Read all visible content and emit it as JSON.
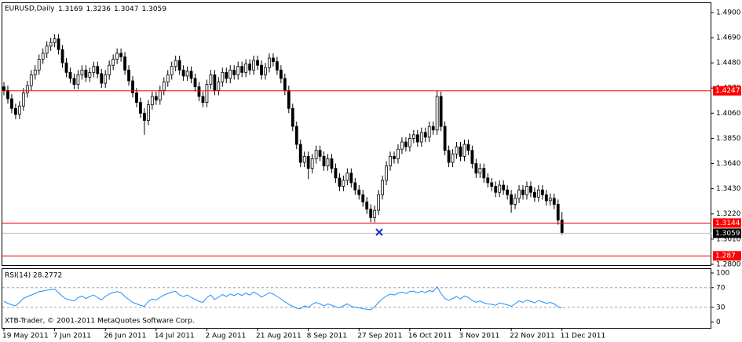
{
  "chart_data": [
    {
      "type": "candlestick",
      "title": "EURUSD,Daily",
      "categories": [
        "19 May 2011",
        null,
        null,
        null,
        null,
        null,
        null,
        null,
        null,
        null,
        null,
        null,
        null,
        "7 Jun 2011",
        null,
        null,
        null,
        null,
        null,
        null,
        null,
        null,
        null,
        null,
        null,
        null,
        "26 Jun 2011",
        null,
        null,
        null,
        null,
        null,
        null,
        null,
        null,
        null,
        null,
        null,
        null,
        "14 Jul 2011",
        null,
        null,
        null,
        null,
        null,
        null,
        null,
        null,
        null,
        null,
        null,
        null,
        "2 Aug 2011",
        null,
        null,
        null,
        null,
        null,
        null,
        null,
        null,
        null,
        null,
        null,
        null,
        "21 Aug 2011",
        null,
        null,
        null,
        null,
        null,
        null,
        null,
        null,
        null,
        null,
        null,
        null,
        "8 Sep 2011",
        null,
        null,
        null,
        null,
        null,
        null,
        null,
        null,
        null,
        null,
        null,
        null,
        "27 Sep 2011",
        null,
        null,
        null,
        null,
        null,
        null,
        null,
        null,
        null,
        null,
        null,
        null,
        "16 Oct 2011",
        null,
        null,
        null,
        null,
        null,
        null,
        null,
        null,
        null,
        null,
        null,
        null,
        "3 Nov 2011",
        null,
        null,
        null,
        null,
        null,
        null,
        null,
        null,
        null,
        null,
        null,
        null,
        "22 Nov 2011",
        null,
        null,
        null,
        null,
        null,
        null,
        null,
        null,
        null,
        null,
        null,
        null,
        "11 Dec 2011"
      ],
      "up_color": "#ffffff",
      "down_color": "#000000",
      "ohlc": [
        [
          1.428,
          1.432,
          1.421,
          1.425
        ],
        [
          1.425,
          1.429,
          1.414,
          1.418
        ],
        [
          1.418,
          1.422,
          1.406,
          1.41
        ],
        [
          1.41,
          1.414,
          1.401,
          1.405
        ],
        [
          1.405,
          1.416,
          1.401,
          1.412
        ],
        [
          1.412,
          1.427,
          1.408,
          1.423
        ],
        [
          1.423,
          1.433,
          1.419,
          1.429
        ],
        [
          1.429,
          1.442,
          1.425,
          1.438
        ],
        [
          1.438,
          1.446,
          1.434,
          1.442
        ],
        [
          1.442,
          1.455,
          1.438,
          1.451
        ],
        [
          1.451,
          1.46,
          1.447,
          1.456
        ],
        [
          1.456,
          1.466,
          1.452,
          1.462
        ],
        [
          1.462,
          1.469,
          1.458,
          1.465
        ],
        [
          1.465,
          1.472,
          1.461,
          1.468
        ],
        [
          1.468,
          1.472,
          1.455,
          1.459
        ],
        [
          1.459,
          1.463,
          1.444,
          1.448
        ],
        [
          1.448,
          1.452,
          1.436,
          1.44
        ],
        [
          1.44,
          1.444,
          1.431,
          1.435
        ],
        [
          1.435,
          1.439,
          1.426,
          1.43
        ],
        [
          1.43,
          1.442,
          1.426,
          1.438
        ],
        [
          1.438,
          1.446,
          1.434,
          1.442
        ],
        [
          1.442,
          1.446,
          1.432,
          1.436
        ],
        [
          1.436,
          1.444,
          1.432,
          1.44
        ],
        [
          1.44,
          1.449,
          1.436,
          1.445
        ],
        [
          1.445,
          1.449,
          1.435,
          1.439
        ],
        [
          1.439,
          1.443,
          1.427,
          1.431
        ],
        [
          1.431,
          1.442,
          1.427,
          1.438
        ],
        [
          1.438,
          1.45,
          1.434,
          1.446
        ],
        [
          1.446,
          1.455,
          1.442,
          1.451
        ],
        [
          1.451,
          1.46,
          1.447,
          1.456
        ],
        [
          1.456,
          1.46,
          1.449,
          1.453
        ],
        [
          1.453,
          1.457,
          1.438,
          1.442
        ],
        [
          1.442,
          1.446,
          1.429,
          1.433
        ],
        [
          1.433,
          1.437,
          1.419,
          1.423
        ],
        [
          1.423,
          1.427,
          1.411,
          1.415
        ],
        [
          1.415,
          1.419,
          1.402,
          1.406
        ],
        [
          1.406,
          1.41,
          1.388,
          1.4
        ],
        [
          1.4,
          1.417,
          1.396,
          1.413
        ],
        [
          1.413,
          1.424,
          1.409,
          1.42
        ],
        [
          1.42,
          1.424,
          1.413,
          1.417
        ],
        [
          1.417,
          1.429,
          1.413,
          1.425
        ],
        [
          1.425,
          1.436,
          1.421,
          1.432
        ],
        [
          1.432,
          1.442,
          1.428,
          1.438
        ],
        [
          1.438,
          1.449,
          1.434,
          1.445
        ],
        [
          1.445,
          1.454,
          1.441,
          1.45
        ],
        [
          1.45,
          1.454,
          1.438,
          1.442
        ],
        [
          1.442,
          1.446,
          1.433,
          1.437
        ],
        [
          1.437,
          1.445,
          1.433,
          1.441
        ],
        [
          1.441,
          1.445,
          1.431,
          1.435
        ],
        [
          1.435,
          1.439,
          1.424,
          1.428
        ],
        [
          1.428,
          1.432,
          1.416,
          1.42
        ],
        [
          1.42,
          1.424,
          1.411,
          1.415
        ],
        [
          1.415,
          1.434,
          1.411,
          1.43
        ],
        [
          1.43,
          1.442,
          1.426,
          1.438
        ],
        [
          1.438,
          1.442,
          1.421,
          1.425
        ],
        [
          1.425,
          1.436,
          1.421,
          1.432
        ],
        [
          1.432,
          1.444,
          1.428,
          1.44
        ],
        [
          1.44,
          1.444,
          1.431,
          1.435
        ],
        [
          1.435,
          1.446,
          1.431,
          1.442
        ],
        [
          1.442,
          1.446,
          1.434,
          1.438
        ],
        [
          1.438,
          1.449,
          1.434,
          1.445
        ],
        [
          1.445,
          1.449,
          1.436,
          1.44
        ],
        [
          1.44,
          1.451,
          1.436,
          1.447
        ],
        [
          1.447,
          1.451,
          1.438,
          1.442
        ],
        [
          1.442,
          1.454,
          1.438,
          1.45
        ],
        [
          1.45,
          1.454,
          1.442,
          1.446
        ],
        [
          1.446,
          1.45,
          1.434,
          1.438
        ],
        [
          1.438,
          1.448,
          1.434,
          1.444
        ],
        [
          1.444,
          1.456,
          1.44,
          1.452
        ],
        [
          1.452,
          1.456,
          1.445,
          1.449
        ],
        [
          1.449,
          1.453,
          1.438,
          1.442
        ],
        [
          1.442,
          1.446,
          1.431,
          1.435
        ],
        [
          1.435,
          1.439,
          1.421,
          1.425
        ],
        [
          1.425,
          1.429,
          1.406,
          1.41
        ],
        [
          1.41,
          1.414,
          1.391,
          1.395
        ],
        [
          1.395,
          1.399,
          1.376,
          1.38
        ],
        [
          1.38,
          1.384,
          1.361,
          1.365
        ],
        [
          1.365,
          1.374,
          1.361,
          1.37
        ],
        [
          1.37,
          1.374,
          1.351,
          1.36
        ],
        [
          1.36,
          1.372,
          1.356,
          1.368
        ],
        [
          1.368,
          1.379,
          1.364,
          1.375
        ],
        [
          1.375,
          1.379,
          1.366,
          1.37
        ],
        [
          1.37,
          1.374,
          1.358,
          1.362
        ],
        [
          1.362,
          1.372,
          1.358,
          1.368
        ],
        [
          1.368,
          1.372,
          1.356,
          1.36
        ],
        [
          1.36,
          1.364,
          1.348,
          1.352
        ],
        [
          1.352,
          1.356,
          1.341,
          1.345
        ],
        [
          1.345,
          1.354,
          1.341,
          1.35
        ],
        [
          1.35,
          1.36,
          1.346,
          1.356
        ],
        [
          1.356,
          1.36,
          1.344,
          1.348
        ],
        [
          1.348,
          1.352,
          1.338,
          1.342
        ],
        [
          1.342,
          1.346,
          1.334,
          1.338
        ],
        [
          1.338,
          1.342,
          1.328,
          1.332
        ],
        [
          1.332,
          1.336,
          1.322,
          1.326
        ],
        [
          1.326,
          1.33,
          1.315,
          1.319
        ],
        [
          1.319,
          1.329,
          1.315,
          1.325
        ],
        [
          1.325,
          1.342,
          1.321,
          1.338
        ],
        [
          1.338,
          1.354,
          1.334,
          1.35
        ],
        [
          1.35,
          1.366,
          1.346,
          1.362
        ],
        [
          1.362,
          1.374,
          1.358,
          1.37
        ],
        [
          1.37,
          1.374,
          1.364,
          1.368
        ],
        [
          1.368,
          1.38,
          1.364,
          1.376
        ],
        [
          1.376,
          1.386,
          1.372,
          1.382
        ],
        [
          1.382,
          1.386,
          1.374,
          1.378
        ],
        [
          1.378,
          1.389,
          1.374,
          1.385
        ],
        [
          1.385,
          1.392,
          1.381,
          1.388
        ],
        [
          1.388,
          1.392,
          1.378,
          1.382
        ],
        [
          1.382,
          1.394,
          1.378,
          1.39
        ],
        [
          1.39,
          1.394,
          1.382,
          1.386
        ],
        [
          1.386,
          1.399,
          1.382,
          1.395
        ],
        [
          1.395,
          1.399,
          1.388,
          1.392
        ],
        [
          1.392,
          1.425,
          1.388,
          1.42
        ],
        [
          1.42,
          1.424,
          1.391,
          1.395
        ],
        [
          1.395,
          1.399,
          1.371,
          1.375
        ],
        [
          1.375,
          1.379,
          1.361,
          1.365
        ],
        [
          1.365,
          1.376,
          1.361,
          1.372
        ],
        [
          1.372,
          1.382,
          1.368,
          1.378
        ],
        [
          1.378,
          1.382,
          1.366,
          1.37
        ],
        [
          1.37,
          1.384,
          1.366,
          1.38
        ],
        [
          1.38,
          1.384,
          1.371,
          1.375
        ],
        [
          1.375,
          1.379,
          1.36,
          1.364
        ],
        [
          1.364,
          1.368,
          1.352,
          1.356
        ],
        [
          1.356,
          1.364,
          1.352,
          1.36
        ],
        [
          1.36,
          1.364,
          1.348,
          1.352
        ],
        [
          1.352,
          1.356,
          1.344,
          1.348
        ],
        [
          1.348,
          1.352,
          1.341,
          1.345
        ],
        [
          1.345,
          1.349,
          1.336,
          1.34
        ],
        [
          1.34,
          1.35,
          1.336,
          1.346
        ],
        [
          1.346,
          1.35,
          1.338,
          1.342
        ],
        [
          1.342,
          1.346,
          1.334,
          1.338
        ],
        [
          1.338,
          1.342,
          1.323,
          1.33
        ],
        [
          1.33,
          1.339,
          1.326,
          1.335
        ],
        [
          1.335,
          1.346,
          1.331,
          1.342
        ],
        [
          1.342,
          1.346,
          1.334,
          1.338
        ],
        [
          1.338,
          1.349,
          1.334,
          1.345
        ],
        [
          1.345,
          1.349,
          1.336,
          1.34
        ],
        [
          1.34,
          1.344,
          1.332,
          1.336
        ],
        [
          1.336,
          1.346,
          1.332,
          1.342
        ],
        [
          1.342,
          1.346,
          1.334,
          1.338
        ],
        [
          1.338,
          1.342,
          1.329,
          1.333
        ],
        [
          1.333,
          1.339,
          1.329,
          1.335
        ],
        [
          1.335,
          1.339,
          1.326,
          1.33
        ],
        [
          1.33,
          1.334,
          1.313,
          1.3169
        ],
        [
          1.3169,
          1.3236,
          1.3047,
          1.3059
        ]
      ],
      "ylim": [
        1.2793,
        1.4978
      ],
      "yticks": [
        {
          "value": 1.49,
          "label": "1.4900"
        },
        {
          "value": 1.469,
          "label": "1.4690"
        },
        {
          "value": 1.448,
          "label": "1.4480"
        },
        {
          "value": 1.427,
          "label": "1.4270"
        },
        {
          "value": 1.406,
          "label": "1.4060"
        },
        {
          "value": 1.385,
          "label": "1.3850"
        },
        {
          "value": 1.364,
          "label": "1.3640"
        },
        {
          "value": 1.343,
          "label": "1.3430"
        },
        {
          "value": 1.322,
          "label": "1.3220"
        },
        {
          "value": 1.301,
          "label": "1.3010"
        },
        {
          "value": 1.28,
          "label": "1.2800"
        }
      ],
      "hlines": [
        {
          "value": 1.4247,
          "color": "#ff0000"
        },
        {
          "value": 1.3144,
          "color": "#ff0000"
        },
        {
          "value": 1.287,
          "color": "#ff0000"
        }
      ],
      "last_price_color": "#c0c0c0"
    },
    {
      "type": "line",
      "title": "RSI(14)",
      "color": "#1e90ff",
      "values": [
        42,
        38,
        35,
        33,
        40,
        48,
        52,
        55,
        58,
        62,
        63,
        65,
        66,
        67,
        60,
        52,
        47,
        45,
        43,
        50,
        53,
        48,
        52,
        55,
        50,
        45,
        52,
        57,
        60,
        62,
        60,
        52,
        46,
        40,
        37,
        34,
        32,
        42,
        47,
        45,
        50,
        55,
        58,
        61,
        63,
        55,
        52,
        55,
        50,
        46,
        42,
        40,
        50,
        55,
        46,
        51,
        56,
        52,
        57,
        54,
        58,
        54,
        59,
        55,
        61,
        57,
        51,
        55,
        60,
        57,
        52,
        47,
        41,
        36,
        32,
        28,
        27,
        33,
        30,
        36,
        40,
        37,
        33,
        37,
        34,
        31,
        29,
        33,
        37,
        32,
        30,
        29,
        27,
        26,
        25,
        31,
        40,
        47,
        53,
        57,
        55,
        59,
        61,
        58,
        62,
        63,
        59,
        63,
        60,
        64,
        62,
        72,
        58,
        48,
        44,
        48,
        52,
        47,
        53,
        50,
        44,
        40,
        43,
        39,
        37,
        36,
        34,
        39,
        37,
        35,
        32,
        37,
        43,
        40,
        45,
        42,
        39,
        44,
        41,
        38,
        40,
        37,
        31,
        28.2772
      ],
      "ylim": [
        -12,
        108
      ],
      "yticks": [
        100,
        70,
        30,
        0
      ],
      "grid": [
        70,
        30
      ]
    }
  ],
  "watermark": "XTB-Trader, © 2001-2011 MetaQuotes Software Corp."
}
